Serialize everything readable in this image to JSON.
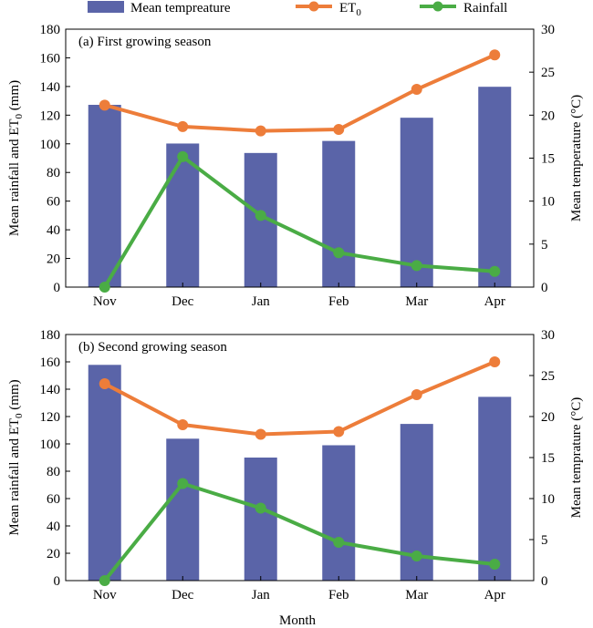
{
  "legend": {
    "temp_label": "Mean tempreature",
    "et0_label": "ET",
    "et0_sub": "0",
    "rain_label": "Rainfall"
  },
  "colors": {
    "bar": "#5a64a8",
    "et0": "#ed7d3a",
    "rain": "#4aac45"
  },
  "xlabel": "Month",
  "chart_data": [
    {
      "type": "bar+line",
      "title": "(a) First growing season",
      "categories": [
        "Nov",
        "Dec",
        "Jan",
        "Feb",
        "Mar",
        "Apr"
      ],
      "ylabel_left": "Mean rainfall and ET",
      "ylabel_left_sub": "0",
      "ylabel_left_unit": " (mm)",
      "ylabel_right": "Mean temperature (°C)",
      "ylim_left": [
        0,
        180
      ],
      "yticks_left": [
        0,
        20,
        40,
        60,
        80,
        100,
        120,
        140,
        160,
        180
      ],
      "ylim_right": [
        0,
        30
      ],
      "yticks_right": [
        0,
        5,
        10,
        15,
        20,
        25,
        30
      ],
      "series": [
        {
          "name": "Mean tempreature",
          "kind": "bar",
          "axis": "right",
          "values": [
            21.2,
            16.7,
            15.6,
            17.0,
            19.7,
            23.3
          ]
        },
        {
          "name": "ET0",
          "kind": "line",
          "axis": "left",
          "values": [
            127,
            112,
            109,
            110,
            138,
            162
          ]
        },
        {
          "name": "Rainfall",
          "kind": "line",
          "axis": "left",
          "values": [
            0,
            91,
            50,
            24,
            15,
            11
          ]
        }
      ]
    },
    {
      "type": "bar+line",
      "title": "(b) Second growing season",
      "categories": [
        "Nov",
        "Dec",
        "Jan",
        "Feb",
        "Mar",
        "Apr"
      ],
      "ylabel_left": "Mean rainfall and ET",
      "ylabel_left_sub": "0",
      "ylabel_left_unit": " (mm)",
      "ylabel_right": "Mean temprature (°C)",
      "ylim_left": [
        0,
        180
      ],
      "yticks_left": [
        0,
        20,
        40,
        60,
        80,
        100,
        120,
        140,
        160,
        180
      ],
      "ylim_right": [
        0,
        30
      ],
      "yticks_right": [
        0,
        5,
        10,
        15,
        20,
        25,
        30
      ],
      "series": [
        {
          "name": "Mean tempreature",
          "kind": "bar",
          "axis": "right",
          "values": [
            26.3,
            17.3,
            15.0,
            16.5,
            19.1,
            22.4
          ]
        },
        {
          "name": "ET0",
          "kind": "line",
          "axis": "left",
          "values": [
            144,
            114,
            107,
            109,
            136,
            160
          ]
        },
        {
          "name": "Rainfall",
          "kind": "line",
          "axis": "left",
          "values": [
            0,
            71,
            53,
            28,
            18,
            12
          ]
        }
      ]
    }
  ]
}
